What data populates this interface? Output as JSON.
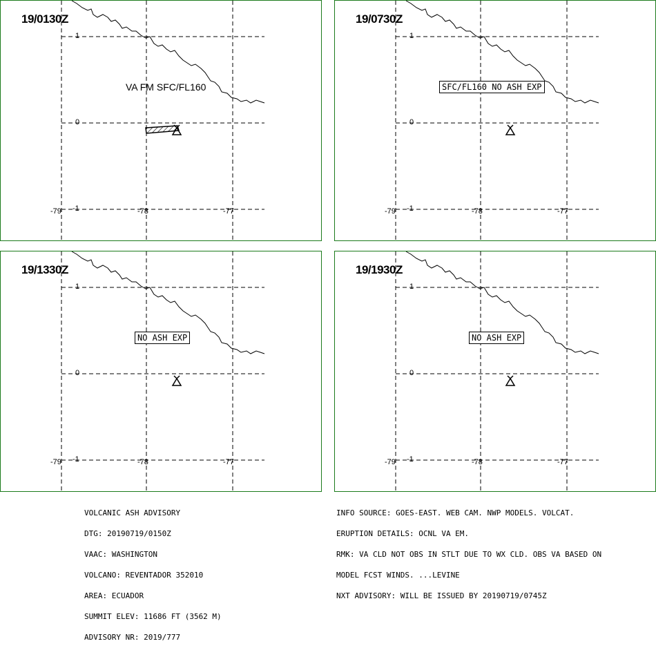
{
  "panels": [
    {
      "time": "19/0130Z",
      "label_text": "VA FM SFC/FL160",
      "label_boxed": false,
      "ash_polygon": true
    },
    {
      "time": "19/0730Z",
      "label_text": "SFC/FL160 NO ASH EXP",
      "label_boxed": true,
      "ash_polygon": false
    },
    {
      "time": "19/1330Z",
      "label_text": "NO ASH EXP",
      "label_boxed": true,
      "ash_polygon": false
    },
    {
      "time": "19/1930Z",
      "label_text": "NO ASH EXP",
      "label_boxed": true,
      "ash_polygon": false
    }
  ],
  "axes": {
    "lat_labels": [
      "1",
      "0",
      "-1"
    ],
    "lon_labels": [
      "-79",
      "-78",
      "-77"
    ]
  },
  "advisory_left": [
    "VOLCANIC ASH ADVISORY",
    "DTG: 20190719/0150Z",
    "VAAC: WASHINGTON",
    "VOLCANO: REVENTADOR 352010",
    "AREA: ECUADOR",
    "SUMMIT ELEV: 11686 FT (3562 M)",
    "ADVISORY NR: 2019/777"
  ],
  "advisory_right": [
    "INFO SOURCE: GOES-EAST. WEB CAM. NWP MODELS. VOLCAT.",
    "ERUPTION DETAILS: OCNL VA EM.",
    "RMK: VA CLD NOT OBS IN STLT DUE TO WX CLD. OBS VA BASED ON",
    "MODEL FCST WINDS. ...LEVINE",
    "NXT ADVISORY: WILL BE ISSUED BY 20190719/0745Z"
  ],
  "colors": {
    "panel_border": "#1a7a1a",
    "grid": "#000000",
    "coast": "#000000"
  }
}
